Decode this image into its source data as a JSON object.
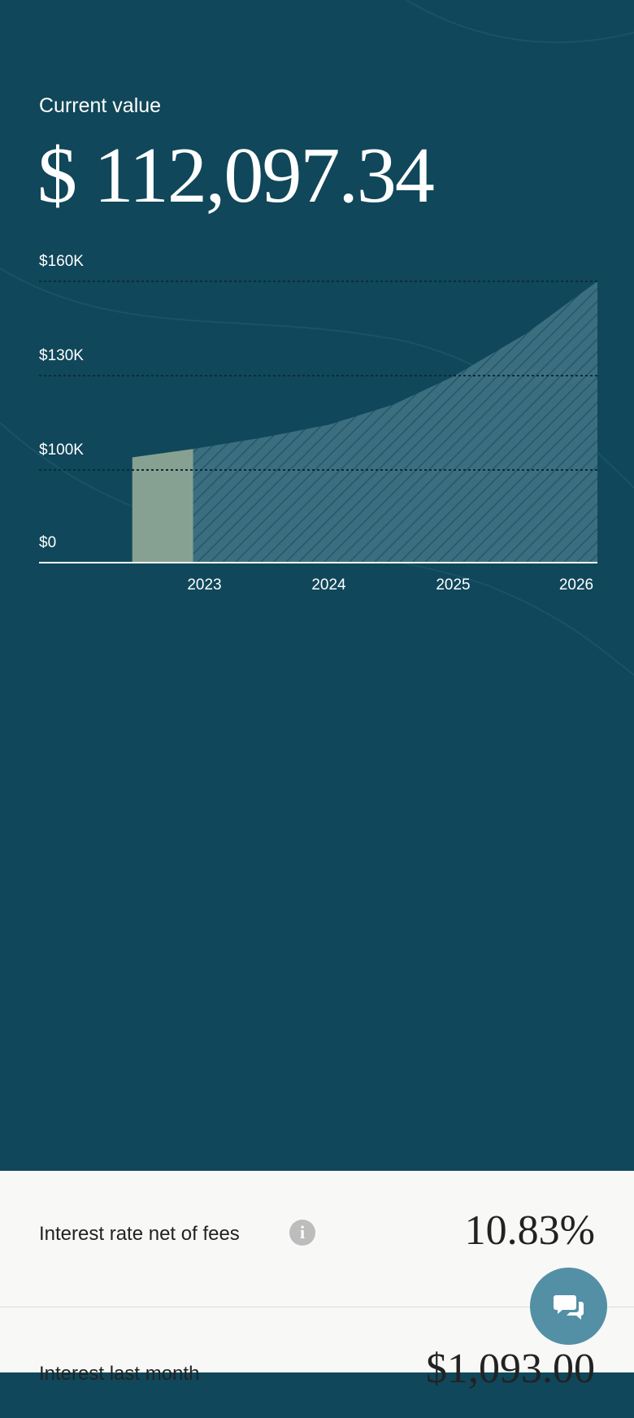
{
  "header": {
    "label": "Current value",
    "value": "$ 112,097.34"
  },
  "chart_data": {
    "type": "area",
    "xlim": [
      2021.67,
      2026.16
    ],
    "xticks": [
      2023,
      2024,
      2025,
      2026
    ],
    "ylim": [
      0,
      160000
    ],
    "yticks": [
      {
        "value": 0,
        "label": "$0"
      },
      {
        "value": 100000,
        "label": "$100K"
      },
      {
        "value": 130000,
        "label": "$130K"
      },
      {
        "value": 160000,
        "label": "$160K"
      }
    ],
    "grid": true,
    "series": [
      {
        "color": "#86a192",
        "x": [
          2022.42,
          2022.91
        ],
        "values": [
          104000,
          106700
        ]
      },
      {
        "color": "#3b6f7f",
        "pattern": "hatch",
        "x": [
          2022.91,
          2023.47,
          2024.0,
          2024.52,
          2025.0,
          2025.58,
          2026.16
        ],
        "values": [
          106700,
          110300,
          114400,
          120800,
          129700,
          143200,
          160000
        ]
      }
    ]
  },
  "stats": [
    {
      "label": "Interest rate net of fees",
      "value": "10.83%"
    },
    {
      "label": "Interest last month",
      "value": "$1,093.00"
    }
  ]
}
